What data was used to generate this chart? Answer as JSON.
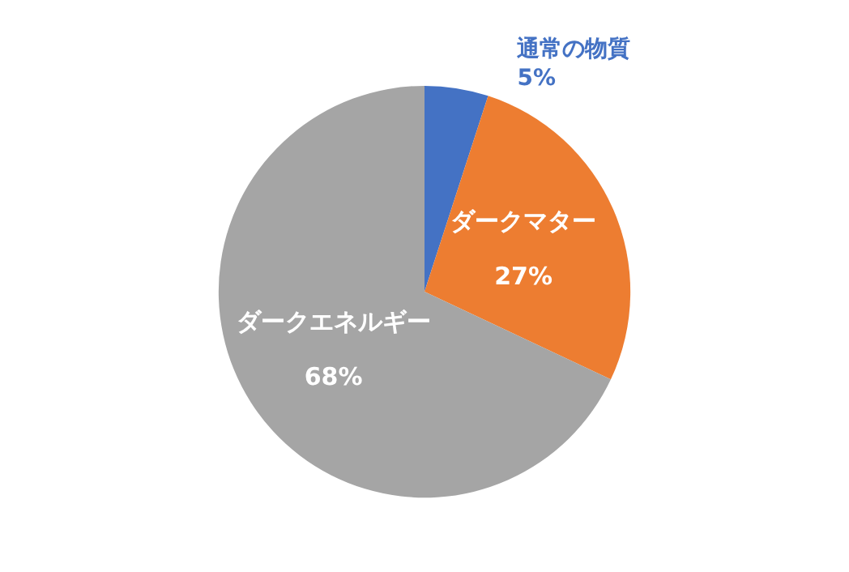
{
  "chart_data": {
    "type": "pie",
    "categories": [
      "通常の物質",
      "ダークマター",
      "ダークエネルギー"
    ],
    "values": [
      5,
      27,
      68
    ],
    "colors": [
      "#4472c4",
      "#ed7d31",
      "#a5a5a5"
    ],
    "value_labels": [
      "5%",
      "27%",
      "68%"
    ],
    "legend": false
  }
}
